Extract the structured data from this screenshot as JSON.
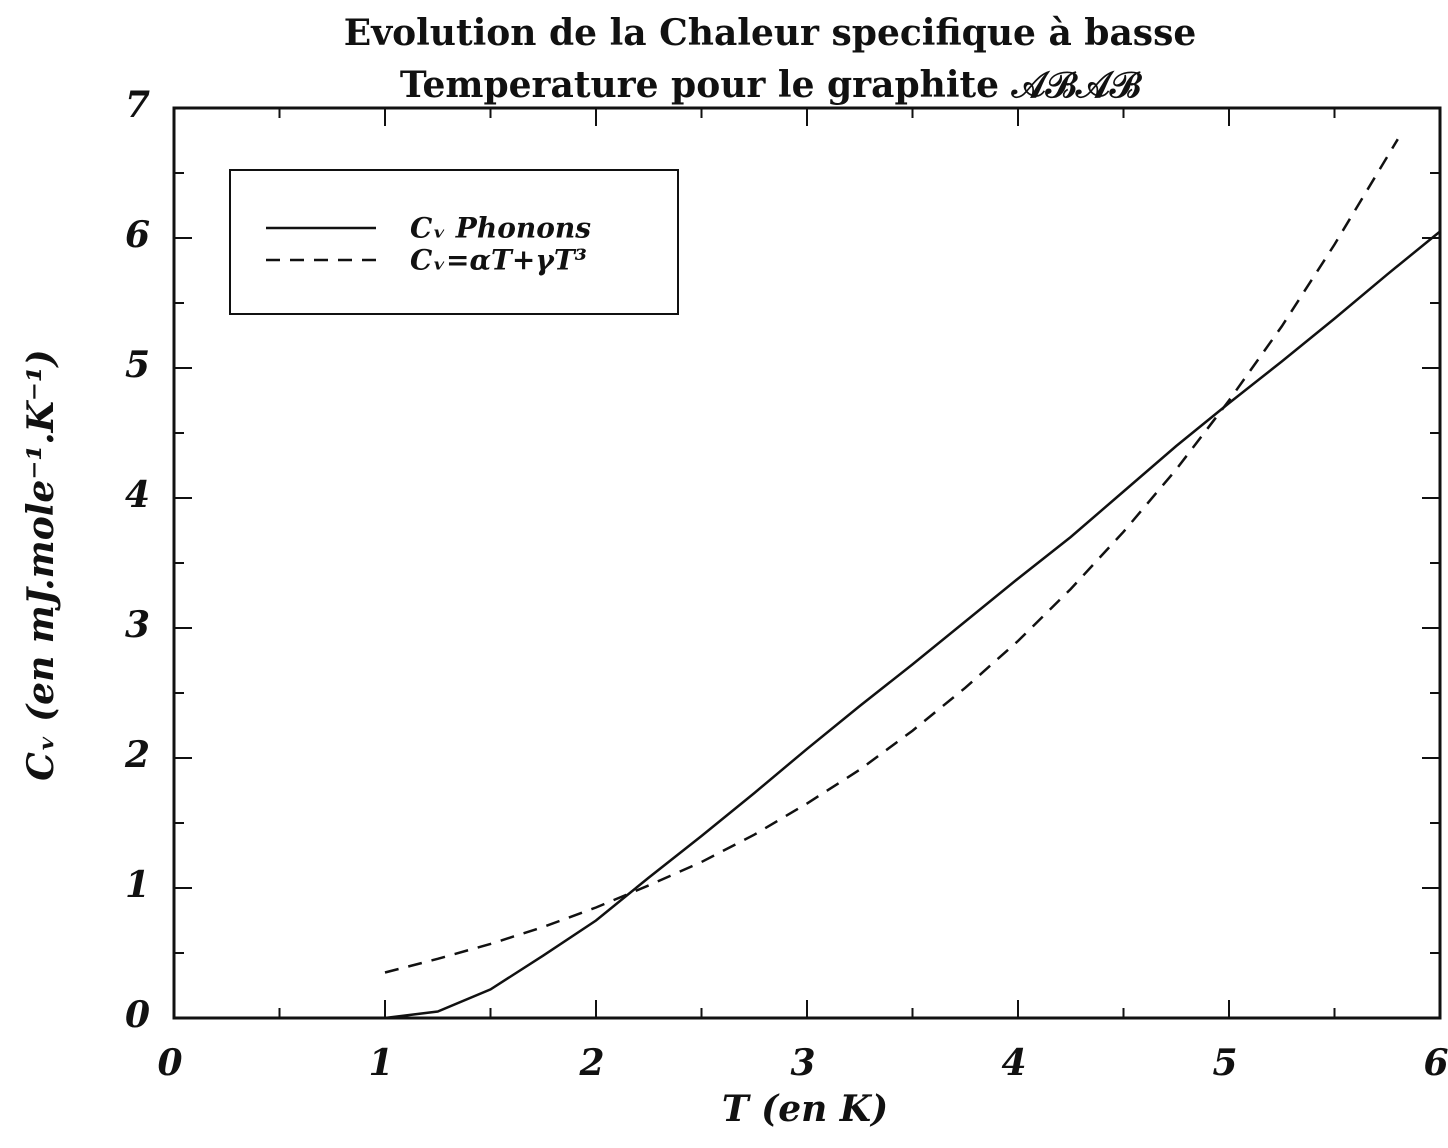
{
  "chart_data": {
    "type": "line",
    "title": [
      "Evolution de la Chaleur specifique à basse",
      "Temperature pour le graphite 𝒜ℬ𝒜ℬ"
    ],
    "xlabel": "T (en K)",
    "ylabel": "Cᵥ (en mJ.mole⁻¹.K⁻¹)",
    "xlim": [
      0,
      6
    ],
    "ylim": [
      0,
      7
    ],
    "xticks": [
      0,
      1,
      2,
      3,
      4,
      5,
      6
    ],
    "yticks": [
      0,
      1,
      2,
      3,
      4,
      5,
      6,
      7
    ],
    "xminorticks": [
      0.5,
      1.5,
      2.5,
      3.5,
      4.5,
      5.5
    ],
    "yminorticks": [
      0.5,
      1.5,
      2.5,
      3.5,
      4.5,
      5.5,
      6.5
    ],
    "legend": "upper left",
    "series": [
      {
        "name": "Cᵥ Phonons",
        "color": "#111111",
        "dash": "solid",
        "x": [
          1,
          1.25,
          1.5,
          1.75,
          2,
          2.25,
          2.5,
          2.75,
          3,
          3.25,
          3.5,
          3.75,
          4,
          4.25,
          4.5,
          4.75,
          5,
          5.25,
          5.5,
          5.75,
          6
        ],
        "values": [
          0,
          0.05,
          0.22,
          0.48,
          0.75,
          1.08,
          1.4,
          1.73,
          2.07,
          2.4,
          2.72,
          3.05,
          3.38,
          3.7,
          4.05,
          4.4,
          4.73,
          5.05,
          5.38,
          5.72,
          6.05
        ]
      },
      {
        "name": "Cᵥ=αT+γT³",
        "color": "#111111",
        "dash": "dashed",
        "x": [
          1,
          1.25,
          1.5,
          1.75,
          2,
          2.25,
          2.5,
          2.75,
          3,
          3.25,
          3.5,
          3.75,
          4,
          4.25,
          4.5,
          4.75,
          5,
          5.25,
          5.5,
          5.8
        ],
        "values": [
          0.35,
          0.455,
          0.57,
          0.7,
          0.85,
          1.02,
          1.2,
          1.41,
          1.65,
          1.91,
          2.21,
          2.54,
          2.9,
          3.3,
          3.74,
          4.22,
          4.75,
          5.32,
          5.95,
          6.76
        ]
      }
    ]
  }
}
